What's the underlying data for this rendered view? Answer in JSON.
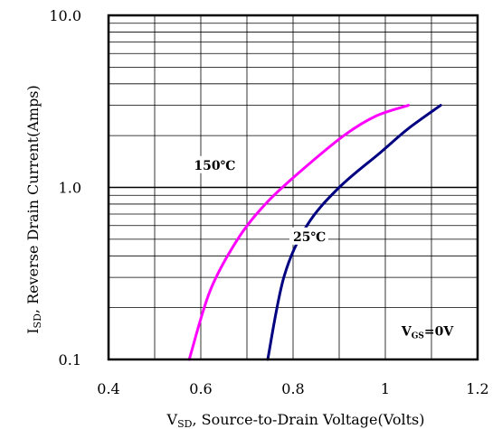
{
  "chart_data": {
    "type": "line",
    "title": "",
    "xlabel": {
      "main": "V",
      "sub": "SD",
      "rest": ", Source-to-Drain Voltage(Volts)"
    },
    "ylabel": {
      "main": "I",
      "sub": "SD",
      "rest": ", Reverse Drain Current(Amps)"
    },
    "xlim": [
      0.4,
      1.2
    ],
    "ylim": [
      0.1,
      10.0
    ],
    "y_scale": "log",
    "grid": true,
    "x_ticks": [
      {
        "value": 0.4,
        "label": "0.4"
      },
      {
        "value": 0.6,
        "label": "0.6"
      },
      {
        "value": 0.8,
        "label": "0.8"
      },
      {
        "value": 1.0,
        "label": "1"
      },
      {
        "value": 1.2,
        "label": "1.2"
      }
    ],
    "y_ticks": [
      {
        "value": 0.1,
        "label": "0.1"
      },
      {
        "value": 1.0,
        "label": "1.0"
      },
      {
        "value": 10.0,
        "label": "10.0"
      }
    ],
    "series": [
      {
        "color": "#ff00ff",
        "x": [
          0.575,
          0.62,
          0.68,
          0.74,
          0.81,
          0.91,
          0.98,
          1.05
        ],
        "y": [
          0.1,
          0.25,
          0.5,
          0.8,
          1.2,
          2.0,
          2.6,
          3.0
        ]
      },
      {
        "color": "#000080",
        "x": [
          0.745,
          0.78,
          0.83,
          0.9,
          0.99,
          1.05,
          1.12
        ],
        "y": [
          0.1,
          0.3,
          0.6,
          1.0,
          1.6,
          2.2,
          3.0
        ]
      }
    ],
    "annotations": [
      {
        "text": "150℃",
        "series": 0,
        "x": 0.585,
        "y": 1.3
      },
      {
        "text": "25℃",
        "series": 1,
        "x": 0.8,
        "y": 0.5
      },
      {
        "main": "V",
        "sub": "GS",
        "rest": "=0V",
        "x": 1.035,
        "y": 0.145
      }
    ]
  }
}
